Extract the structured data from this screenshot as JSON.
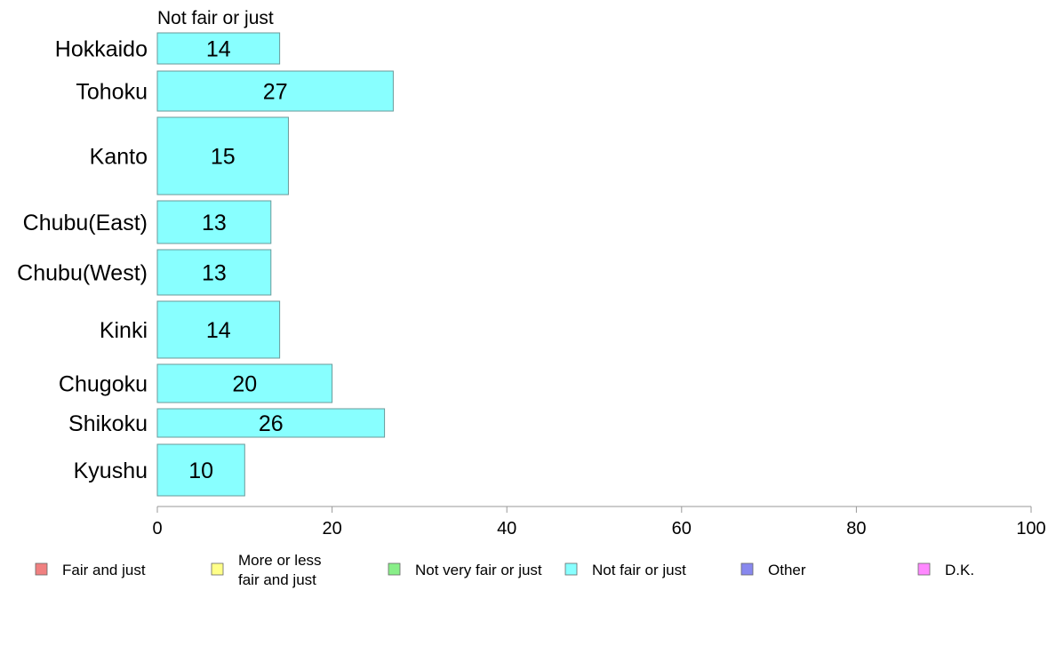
{
  "chart_data": {
    "type": "bar",
    "orientation": "horizontal",
    "series_title": "Not fair or just",
    "categories": [
      "Hokkaido",
      "Tohoku",
      "Kanto",
      "Chubu(East)",
      "Chubu(West)",
      "Kinki",
      "Chugoku",
      "Shikoku",
      "Kyushu"
    ],
    "series": [
      {
        "name": "Not fair or just",
        "color": "#88ffff",
        "values": [
          14,
          27,
          15,
          13,
          13,
          14,
          20,
          26,
          10
        ],
        "data_labels": [
          "14",
          "27",
          "15",
          "13",
          "13",
          "14",
          "20",
          "26",
          "10"
        ]
      }
    ],
    "xlim": [
      0,
      100
    ],
    "x_ticks": [
      0,
      20,
      40,
      60,
      80,
      100
    ],
    "x_tick_labels": [
      "0",
      "20",
      "40",
      "60",
      "80",
      "100"
    ],
    "grid": false,
    "legend": {
      "placement": "bottom",
      "items": [
        {
          "label": [
            "Fair and just"
          ],
          "color": "#f08080"
        },
        {
          "label": [
            "More or less",
            "fair and just"
          ],
          "color": "#ffff88"
        },
        {
          "label": [
            "Not very fair or just"
          ],
          "color": "#88ee88"
        },
        {
          "label": [
            "Not fair or just"
          ],
          "color": "#88ffff"
        },
        {
          "label": [
            "Other"
          ],
          "color": "#8888ee"
        },
        {
          "label": [
            "D.K."
          ],
          "color": "#ff88ff"
        }
      ]
    }
  }
}
